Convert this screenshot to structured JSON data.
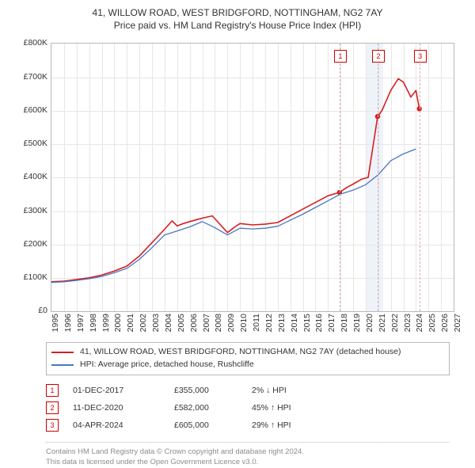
{
  "header": {
    "line1": "41, WILLOW ROAD, WEST BRIDGFORD, NOTTINGHAM, NG2 7AY",
    "line2": "Price paid vs. HM Land Registry's House Price Index (HPI)"
  },
  "chart": {
    "type": "line",
    "background_color": "#ffffff",
    "grid_color": "#e6e6e6",
    "axis_color": "#b8b8b8",
    "xlim": [
      1995,
      2027
    ],
    "ylim": [
      0,
      800000
    ],
    "ytick_step": 100000,
    "ytick_prefix": "£",
    "ytick_suffix": "K",
    "xticks": [
      1995,
      1996,
      1997,
      1998,
      1999,
      2000,
      2001,
      2002,
      2003,
      2004,
      2005,
      2006,
      2007,
      2008,
      2009,
      2010,
      2011,
      2012,
      2013,
      2014,
      2015,
      2016,
      2017,
      2018,
      2019,
      2020,
      2021,
      2022,
      2023,
      2024,
      2025,
      2026,
      2027
    ],
    "band": {
      "from": 2020,
      "to": 2021.4,
      "color": "#eef3fa"
    },
    "event_dash_color": "#d8aeb0",
    "marker_border_color": "#cc0000",
    "series": [
      {
        "name": "41, WILLOW ROAD, WEST BRIDGFORD, NOTTINGHAM, NG2 7AY (detached house)",
        "color": "#d81e1e",
        "width": 1.6,
        "points": [
          [
            1995,
            88000
          ],
          [
            1996,
            90000
          ],
          [
            1997,
            95000
          ],
          [
            1998,
            100000
          ],
          [
            1999,
            108000
          ],
          [
            2000,
            120000
          ],
          [
            2001,
            135000
          ],
          [
            2002,
            165000
          ],
          [
            2003,
            205000
          ],
          [
            2004,
            245000
          ],
          [
            2004.6,
            270000
          ],
          [
            2005,
            255000
          ],
          [
            2005.5,
            262000
          ],
          [
            2006,
            268000
          ],
          [
            2007,
            278000
          ],
          [
            2007.8,
            285000
          ],
          [
            2008.4,
            260000
          ],
          [
            2009,
            235000
          ],
          [
            2009.6,
            252000
          ],
          [
            2010,
            262000
          ],
          [
            2011,
            258000
          ],
          [
            2012,
            260000
          ],
          [
            2013,
            265000
          ],
          [
            2014,
            285000
          ],
          [
            2015,
            305000
          ],
          [
            2016,
            325000
          ],
          [
            2017,
            345000
          ],
          [
            2017.92,
            355000
          ],
          [
            2018.5,
            370000
          ],
          [
            2019,
            380000
          ],
          [
            2019.7,
            395000
          ],
          [
            2020.2,
            400000
          ],
          [
            2020.95,
            582000
          ],
          [
            2021.3,
            600000
          ],
          [
            2022,
            660000
          ],
          [
            2022.6,
            695000
          ],
          [
            2023,
            685000
          ],
          [
            2023.6,
            640000
          ],
          [
            2024.0,
            660000
          ],
          [
            2024.27,
            605000
          ]
        ],
        "sale_markers": [
          {
            "x": 2017.92,
            "y": 355000
          },
          {
            "x": 2020.95,
            "y": 582000
          },
          {
            "x": 2024.27,
            "y": 605000
          }
        ],
        "sale_marker_color": "#d81e1e"
      },
      {
        "name": "HPI: Average price, detached house, Rushcliffe",
        "color": "#4a77c4",
        "width": 1.3,
        "points": [
          [
            1995,
            86000
          ],
          [
            1996,
            88000
          ],
          [
            1997,
            92000
          ],
          [
            1998,
            97000
          ],
          [
            1999,
            104000
          ],
          [
            2000,
            115000
          ],
          [
            2001,
            128000
          ],
          [
            2002,
            155000
          ],
          [
            2003,
            190000
          ],
          [
            2004,
            228000
          ],
          [
            2005,
            240000
          ],
          [
            2006,
            252000
          ],
          [
            2007,
            268000
          ],
          [
            2008,
            250000
          ],
          [
            2009,
            228000
          ],
          [
            2010,
            248000
          ],
          [
            2011,
            246000
          ],
          [
            2012,
            248000
          ],
          [
            2013,
            254000
          ],
          [
            2014,
            272000
          ],
          [
            2015,
            290000
          ],
          [
            2016,
            310000
          ],
          [
            2017,
            330000
          ],
          [
            2018,
            350000
          ],
          [
            2019,
            362000
          ],
          [
            2020,
            378000
          ],
          [
            2021,
            408000
          ],
          [
            2022,
            450000
          ],
          [
            2023,
            470000
          ],
          [
            2024,
            485000
          ]
        ]
      }
    ],
    "event_markers": [
      {
        "id": "1",
        "x": 2017.92,
        "label_y": 8
      },
      {
        "id": "2",
        "x": 2020.95,
        "label_y": 8
      },
      {
        "id": "3",
        "x": 2024.27,
        "label_y": 8
      }
    ]
  },
  "legend": {
    "items": [
      {
        "color": "#d81e1e",
        "label": "41, WILLOW ROAD, WEST BRIDGFORD, NOTTINGHAM, NG2 7AY (detached house)"
      },
      {
        "color": "#4a77c4",
        "label": "HPI: Average price, detached house, Rushcliffe"
      }
    ]
  },
  "transactions": [
    {
      "marker": "1",
      "date": "01-DEC-2017",
      "price": "£355,000",
      "pct": "2% ↓ HPI"
    },
    {
      "marker": "2",
      "date": "11-DEC-2020",
      "price": "£582,000",
      "pct": "45% ↑ HPI"
    },
    {
      "marker": "3",
      "date": "04-APR-2024",
      "price": "£605,000",
      "pct": "29% ↑ HPI"
    }
  ],
  "footer": {
    "line1": "Contains HM Land Registry data © Crown copyright and database right 2024.",
    "line2": "This data is licensed under the Open Government Licence v3.0."
  }
}
